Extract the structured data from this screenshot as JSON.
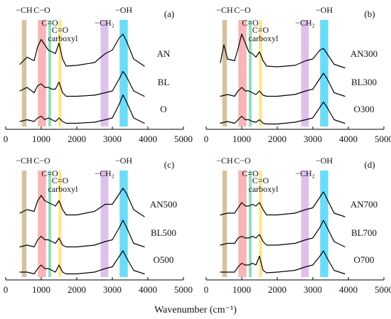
{
  "xaxis_label": "Wavenumber (cm⁻¹)",
  "chart_data": [
    {
      "type": "line",
      "panel_label": "(a)",
      "xlim": [
        0,
        5000
      ],
      "x_ticks": [
        "0",
        "1000",
        "2000",
        "3000",
        "4000",
        "5000"
      ],
      "bands": [
        {
          "label": "−CH",
          "center": 520,
          "width": 130,
          "color": "#cdb98c"
        },
        {
          "label": "C−O",
          "center": 1020,
          "width": 230,
          "color": "#f6a8ac"
        },
        {
          "label": "C=O",
          "center": 1240,
          "width": 80,
          "color": "#7ed9b0"
        },
        {
          "label": "C=O carboxyl",
          "center": 1530,
          "width": 90,
          "color": "#ffe27a"
        },
        {
          "label": "−CH₂",
          "center": 2780,
          "width": 220,
          "color": "#d8b6e6"
        },
        {
          "label": "−OH",
          "center": 3320,
          "width": 230,
          "color": "#52d6f4"
        }
      ],
      "series": [
        {
          "name": "AN",
          "x": [
            400,
            600,
            800,
            900,
            1000,
            1100,
            1200,
            1300,
            1400,
            1500,
            1600,
            1700,
            2000,
            2500,
            2800,
            3000,
            3200,
            3300,
            3400,
            3600,
            3900
          ],
          "y": [
            0.15,
            0.35,
            0.25,
            0.65,
            0.85,
            0.7,
            0.55,
            0.5,
            0.45,
            0.75,
            0.3,
            0.1,
            0.12,
            0.2,
            0.45,
            0.55,
            0.9,
            1.0,
            0.8,
            0.3,
            0.1
          ]
        },
        {
          "name": "BL",
          "x": [
            400,
            600,
            800,
            900,
            1000,
            1100,
            1200,
            1300,
            1400,
            1500,
            1600,
            1700,
            2000,
            2500,
            2800,
            3000,
            3200,
            3300,
            3400,
            3600,
            3900
          ],
          "y": [
            0.2,
            0.3,
            0.15,
            0.35,
            0.4,
            0.3,
            0.3,
            0.25,
            0.25,
            0.45,
            0.15,
            0.05,
            0.05,
            0.08,
            0.15,
            0.2,
            0.55,
            0.75,
            0.6,
            0.2,
            0.05
          ]
        },
        {
          "name": "O",
          "x": [
            400,
            600,
            800,
            900,
            1000,
            1100,
            1200,
            1300,
            1400,
            1500,
            1600,
            1700,
            2000,
            2500,
            2800,
            3000,
            3200,
            3300,
            3400,
            3600,
            3900
          ],
          "y": [
            0.1,
            0.15,
            0.1,
            0.2,
            0.25,
            0.15,
            0.2,
            0.15,
            0.1,
            0.2,
            0.1,
            0.05,
            0.05,
            0.08,
            0.15,
            0.2,
            0.6,
            0.85,
            0.65,
            0.2,
            0.05
          ]
        }
      ]
    },
    {
      "type": "line",
      "panel_label": "(b)",
      "xlim": [
        0,
        5000
      ],
      "x_ticks": [
        "0",
        "1000",
        "2000",
        "3000",
        "4000",
        "5000"
      ],
      "bands": [
        {
          "label": "−CH",
          "center": 520,
          "width": 130,
          "color": "#cdb98c"
        },
        {
          "label": "C−O",
          "center": 1020,
          "width": 230,
          "color": "#f6a8ac"
        },
        {
          "label": "C=O",
          "center": 1240,
          "width": 80,
          "color": "#7ed9b0"
        },
        {
          "label": "C=O carboxyl",
          "center": 1530,
          "width": 90,
          "color": "#ffe27a"
        },
        {
          "label": "−CH₂",
          "center": 2780,
          "width": 220,
          "color": "#d8b6e6"
        },
        {
          "label": "−OH",
          "center": 3320,
          "width": 230,
          "color": "#52d6f4"
        }
      ],
      "series": [
        {
          "name": "AN300",
          "x": [
            400,
            500,
            600,
            800,
            900,
            1000,
            1100,
            1200,
            1300,
            1400,
            1500,
            1600,
            1700,
            2000,
            2500,
            2800,
            3000,
            3200,
            3300,
            3400,
            3600,
            3900
          ],
          "y": [
            0.2,
            0.7,
            0.3,
            0.25,
            0.6,
            1.0,
            0.75,
            0.5,
            0.45,
            0.35,
            0.5,
            0.25,
            0.1,
            0.08,
            0.12,
            0.25,
            0.3,
            0.55,
            0.6,
            0.45,
            0.15,
            0.05
          ]
        },
        {
          "name": "BL300",
          "x": [
            400,
            600,
            800,
            900,
            1000,
            1100,
            1200,
            1300,
            1400,
            1500,
            1600,
            1700,
            2000,
            2500,
            2800,
            3000,
            3200,
            3300,
            3400,
            3600,
            3900
          ],
          "y": [
            0.05,
            0.1,
            0.05,
            0.2,
            0.3,
            0.2,
            0.2,
            0.15,
            0.1,
            0.2,
            0.08,
            0.05,
            0.05,
            0.1,
            0.2,
            0.25,
            0.55,
            0.7,
            0.55,
            0.15,
            0.05
          ]
        },
        {
          "name": "O300",
          "x": [
            400,
            600,
            800,
            900,
            1000,
            1100,
            1200,
            1300,
            1400,
            1500,
            1600,
            1700,
            2000,
            2500,
            2800,
            3000,
            3200,
            3300,
            3400,
            3600,
            3900
          ],
          "y": [
            0.05,
            0.1,
            0.05,
            0.15,
            0.25,
            0.15,
            0.15,
            0.1,
            0.08,
            0.15,
            0.05,
            0.03,
            0.03,
            0.08,
            0.15,
            0.2,
            0.5,
            0.65,
            0.5,
            0.15,
            0.05
          ]
        }
      ]
    },
    {
      "type": "line",
      "panel_label": "(c)",
      "xlim": [
        0,
        5000
      ],
      "x_ticks": [
        "0",
        "1000",
        "2000",
        "3000",
        "4000",
        "5000"
      ],
      "bands": [
        {
          "label": "−CH",
          "center": 520,
          "width": 130,
          "color": "#cdb98c"
        },
        {
          "label": "C−O",
          "center": 1020,
          "width": 230,
          "color": "#f6a8ac"
        },
        {
          "label": "C=O",
          "center": 1240,
          "width": 80,
          "color": "#7ed9b0"
        },
        {
          "label": "C=O carboxyl",
          "center": 1530,
          "width": 90,
          "color": "#ffe27a"
        },
        {
          "label": "−CH₂",
          "center": 2780,
          "width": 220,
          "color": "#d8b6e6"
        },
        {
          "label": "−OH",
          "center": 3320,
          "width": 230,
          "color": "#52d6f4"
        }
      ],
      "series": [
        {
          "name": "AN500",
          "x": [
            400,
            600,
            800,
            900,
            1000,
            1100,
            1200,
            1300,
            1400,
            1500,
            1600,
            1700,
            2000,
            2500,
            2800,
            3000,
            3200,
            3300,
            3400,
            3600,
            3900
          ],
          "y": [
            0.2,
            0.3,
            0.25,
            0.55,
            0.7,
            0.55,
            0.5,
            0.45,
            0.4,
            0.55,
            0.3,
            0.15,
            0.15,
            0.25,
            0.45,
            0.45,
            0.75,
            0.9,
            0.75,
            0.3,
            0.1
          ]
        },
        {
          "name": "BL500",
          "x": [
            400,
            600,
            800,
            900,
            1000,
            1100,
            1200,
            1300,
            1400,
            1500,
            1600,
            1700,
            2000,
            2500,
            2800,
            3000,
            3200,
            3300,
            3400,
            3600,
            3900
          ],
          "y": [
            0.05,
            0.1,
            0.05,
            0.25,
            0.35,
            0.25,
            0.25,
            0.2,
            0.15,
            0.3,
            0.1,
            0.05,
            0.05,
            0.1,
            0.2,
            0.25,
            0.6,
            0.8,
            0.6,
            0.15,
            0.05
          ]
        },
        {
          "name": "O500",
          "x": [
            400,
            600,
            800,
            900,
            1000,
            1100,
            1200,
            1300,
            1400,
            1500,
            1600,
            1700,
            2000,
            2500,
            2800,
            3000,
            3200,
            3300,
            3400,
            3600,
            3900
          ],
          "y": [
            0.1,
            0.1,
            0.05,
            0.2,
            0.3,
            0.2,
            0.2,
            0.15,
            0.1,
            0.3,
            0.1,
            0.05,
            0.05,
            0.1,
            0.2,
            0.25,
            0.55,
            0.7,
            0.5,
            0.15,
            0.05
          ]
        }
      ]
    },
    {
      "type": "line",
      "panel_label": "(d)",
      "xlim": [
        0,
        5000
      ],
      "x_ticks": [
        "0",
        "1000",
        "2000",
        "3000",
        "4000",
        "5000"
      ],
      "bands": [
        {
          "label": "−CH",
          "center": 520,
          "width": 130,
          "color": "#cdb98c"
        },
        {
          "label": "C−O",
          "center": 1020,
          "width": 230,
          "color": "#f6a8ac"
        },
        {
          "label": "C=O",
          "center": 1240,
          "width": 80,
          "color": "#7ed9b0"
        },
        {
          "label": "C=O carboxyl",
          "center": 1530,
          "width": 90,
          "color": "#ffe27a"
        },
        {
          "label": "−CH₂",
          "center": 2780,
          "width": 220,
          "color": "#d8b6e6"
        },
        {
          "label": "−OH",
          "center": 3320,
          "width": 230,
          "color": "#52d6f4"
        }
      ],
      "series": [
        {
          "name": "AN700",
          "x": [
            400,
            600,
            800,
            900,
            1000,
            1100,
            1200,
            1300,
            1400,
            1500,
            1600,
            1700,
            2000,
            2500,
            2800,
            3000,
            3200,
            3300,
            3400,
            3600,
            3900
          ],
          "y": [
            0.15,
            0.2,
            0.2,
            0.35,
            0.5,
            0.4,
            0.4,
            0.45,
            0.4,
            0.5,
            0.3,
            0.15,
            0.15,
            0.2,
            0.3,
            0.35,
            0.65,
            0.8,
            0.6,
            0.2,
            0.1
          ]
        },
        {
          "name": "BL700",
          "x": [
            400,
            600,
            800,
            900,
            1000,
            1100,
            1200,
            1300,
            1400,
            1500,
            1600,
            1700,
            2000,
            2500,
            2800,
            3000,
            3200,
            3300,
            3400,
            3600,
            3900
          ],
          "y": [
            0.1,
            0.15,
            0.15,
            0.3,
            0.35,
            0.3,
            0.3,
            0.35,
            0.3,
            0.4,
            0.2,
            0.1,
            0.1,
            0.15,
            0.25,
            0.3,
            0.6,
            0.8,
            0.6,
            0.2,
            0.05
          ]
        },
        {
          "name": "O700",
          "x": [
            400,
            600,
            800,
            900,
            1000,
            1100,
            1200,
            1300,
            1400,
            1500,
            1600,
            1700,
            2000,
            2500,
            2800,
            3000,
            3200,
            3300,
            3400,
            3600,
            3900
          ],
          "y": [
            0.1,
            0.1,
            0.1,
            0.25,
            0.35,
            0.3,
            0.3,
            0.35,
            0.3,
            0.55,
            0.15,
            0.08,
            0.1,
            0.15,
            0.25,
            0.3,
            0.55,
            0.7,
            0.5,
            0.15,
            0.05
          ]
        }
      ]
    }
  ]
}
